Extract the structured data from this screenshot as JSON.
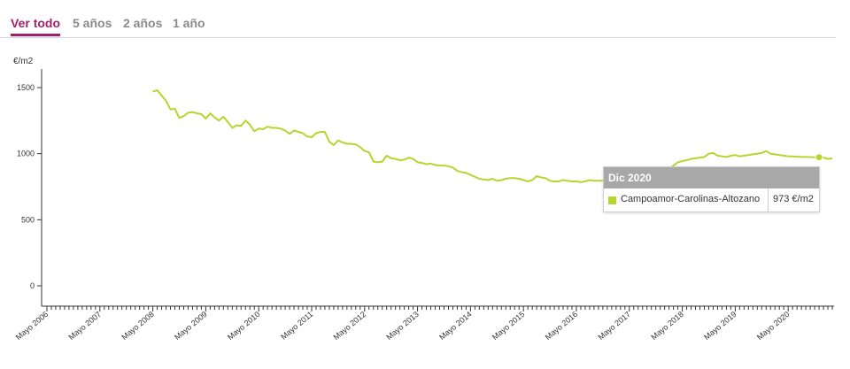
{
  "tabs": [
    {
      "label": "Ver todo",
      "active": true
    },
    {
      "label": "5 años",
      "active": false
    },
    {
      "label": "2 años",
      "active": false
    },
    {
      "label": "1 año",
      "active": false
    }
  ],
  "colors": {
    "accent": "#a3206b",
    "series": "#b5d62e",
    "tab_inactive": "#8a8a8a",
    "tooltip_header": "#a8a8a8"
  },
  "tooltip": {
    "date": "Dic 2020",
    "series_name": "Campoamor-Carolinas-Altozano",
    "value": "973 €/m2"
  },
  "chart_data": {
    "type": "line",
    "title": "",
    "xlabel": "",
    "ylabel": "€/m2",
    "ylim": [
      0,
      1600
    ],
    "yticks": [
      0,
      500,
      1000,
      1500
    ],
    "xlim": [
      "2006-05",
      "2021-03"
    ],
    "xtick_labels": [
      "Mayo 2006",
      "Mayo 2007",
      "Mayo 2008",
      "Mayo 2009",
      "Mayo 2010",
      "Mayo 2011",
      "Mayo 2012",
      "Mayo 2013",
      "Mayo 2014",
      "Mayo 2015",
      "Mayo 2016",
      "Mayo 2017",
      "Mayo 2018",
      "Mayo 2019",
      "Mayo 2020"
    ],
    "grid": false,
    "highlight": {
      "x": "2020-12",
      "y": 973
    },
    "series": [
      {
        "name": "Campoamor-Carolinas-Altozano",
        "points": [
          [
            "2008-05",
            1470
          ],
          [
            "2008-06",
            1480
          ],
          [
            "2008-07",
            1440
          ],
          [
            "2008-08",
            1400
          ],
          [
            "2008-09",
            1335
          ],
          [
            "2008-10",
            1340
          ],
          [
            "2008-11",
            1270
          ],
          [
            "2008-12",
            1285
          ],
          [
            "2009-01",
            1310
          ],
          [
            "2009-02",
            1315
          ],
          [
            "2009-03",
            1305
          ],
          [
            "2009-04",
            1300
          ],
          [
            "2009-05",
            1265
          ],
          [
            "2009-06",
            1305
          ],
          [
            "2009-07",
            1275
          ],
          [
            "2009-08",
            1250
          ],
          [
            "2009-09",
            1280
          ],
          [
            "2009-10",
            1240
          ],
          [
            "2009-11",
            1195
          ],
          [
            "2009-12",
            1215
          ],
          [
            "2010-01",
            1210
          ],
          [
            "2010-02",
            1250
          ],
          [
            "2010-03",
            1220
          ],
          [
            "2010-04",
            1170
          ],
          [
            "2010-05",
            1190
          ],
          [
            "2010-06",
            1185
          ],
          [
            "2010-07",
            1205
          ],
          [
            "2010-08",
            1195
          ],
          [
            "2010-09",
            1195
          ],
          [
            "2010-10",
            1190
          ],
          [
            "2010-11",
            1175
          ],
          [
            "2010-12",
            1150
          ],
          [
            "2011-01",
            1175
          ],
          [
            "2011-02",
            1165
          ],
          [
            "2011-03",
            1155
          ],
          [
            "2011-04",
            1130
          ],
          [
            "2011-05",
            1125
          ],
          [
            "2011-06",
            1155
          ],
          [
            "2011-07",
            1165
          ],
          [
            "2011-08",
            1165
          ],
          [
            "2011-09",
            1090
          ],
          [
            "2011-10",
            1065
          ],
          [
            "2011-11",
            1100
          ],
          [
            "2011-12",
            1085
          ],
          [
            "2012-01",
            1075
          ],
          [
            "2012-02",
            1075
          ],
          [
            "2012-03",
            1070
          ],
          [
            "2012-04",
            1050
          ],
          [
            "2012-05",
            1020
          ],
          [
            "2012-06",
            1010
          ],
          [
            "2012-07",
            940
          ],
          [
            "2012-08",
            935
          ],
          [
            "2012-09",
            940
          ],
          [
            "2012-10",
            985
          ],
          [
            "2012-11",
            965
          ],
          [
            "2012-12",
            960
          ],
          [
            "2013-01",
            950
          ],
          [
            "2013-02",
            955
          ],
          [
            "2013-03",
            970
          ],
          [
            "2013-04",
            960
          ],
          [
            "2013-05",
            935
          ],
          [
            "2013-06",
            930
          ],
          [
            "2013-07",
            920
          ],
          [
            "2013-08",
            925
          ],
          [
            "2013-09",
            915
          ],
          [
            "2013-10",
            910
          ],
          [
            "2013-11",
            910
          ],
          [
            "2013-12",
            905
          ],
          [
            "2014-01",
            895
          ],
          [
            "2014-02",
            870
          ],
          [
            "2014-03",
            860
          ],
          [
            "2014-04",
            855
          ],
          [
            "2014-05",
            840
          ],
          [
            "2014-06",
            825
          ],
          [
            "2014-07",
            810
          ],
          [
            "2014-08",
            805
          ],
          [
            "2014-09",
            800
          ],
          [
            "2014-10",
            810
          ],
          [
            "2014-11",
            795
          ],
          [
            "2014-12",
            800
          ],
          [
            "2015-01",
            810
          ],
          [
            "2015-02",
            815
          ],
          [
            "2015-03",
            815
          ],
          [
            "2015-04",
            810
          ],
          [
            "2015-05",
            800
          ],
          [
            "2015-06",
            790
          ],
          [
            "2015-07",
            800
          ],
          [
            "2015-08",
            830
          ],
          [
            "2015-09",
            820
          ],
          [
            "2015-10",
            815
          ],
          [
            "2015-11",
            795
          ],
          [
            "2015-12",
            790
          ],
          [
            "2016-01",
            790
          ],
          [
            "2016-02",
            800
          ],
          [
            "2016-03",
            795
          ],
          [
            "2016-04",
            790
          ],
          [
            "2016-05",
            790
          ],
          [
            "2016-06",
            785
          ],
          [
            "2016-07",
            790
          ],
          [
            "2016-08",
            800
          ],
          [
            "2016-09",
            795
          ],
          [
            "2016-10",
            795
          ],
          [
            "2016-11",
            795
          ],
          [
            "2016-12",
            790
          ],
          [
            "2017-01",
            795
          ],
          [
            "2017-02",
            800
          ],
          [
            "2017-03",
            805
          ],
          [
            "2017-04",
            810
          ],
          [
            "2017-05",
            815
          ],
          [
            "2017-06",
            820
          ],
          [
            "2017-07",
            825
          ],
          [
            "2017-08",
            825
          ],
          [
            "2017-09",
            830
          ],
          [
            "2017-10",
            835
          ],
          [
            "2017-11",
            840
          ],
          [
            "2017-12",
            850
          ],
          [
            "2018-01",
            860
          ],
          [
            "2018-02",
            880
          ],
          [
            "2018-03",
            910
          ],
          [
            "2018-04",
            935
          ],
          [
            "2018-05",
            945
          ],
          [
            "2018-06",
            950
          ],
          [
            "2018-07",
            960
          ],
          [
            "2018-08",
            965
          ],
          [
            "2018-09",
            970
          ],
          [
            "2018-10",
            975
          ],
          [
            "2018-11",
            1000
          ],
          [
            "2018-12",
            1005
          ],
          [
            "2019-01",
            985
          ],
          [
            "2019-02",
            980
          ],
          [
            "2019-03",
            975
          ],
          [
            "2019-04",
            985
          ],
          [
            "2019-05",
            990
          ],
          [
            "2019-06",
            980
          ],
          [
            "2019-07",
            985
          ],
          [
            "2019-08",
            990
          ],
          [
            "2019-09",
            995
          ],
          [
            "2019-10",
            1000
          ],
          [
            "2019-11",
            1005
          ],
          [
            "2019-12",
            1020
          ],
          [
            "2020-01",
            1000
          ],
          [
            "2020-02",
            995
          ],
          [
            "2020-03",
            990
          ],
          [
            "2020-04",
            985
          ],
          [
            "2020-05",
            980
          ],
          [
            "2020-06",
            980
          ],
          [
            "2020-07",
            978
          ],
          [
            "2020-08",
            975
          ],
          [
            "2020-09",
            975
          ],
          [
            "2020-10",
            974
          ],
          [
            "2020-11",
            972
          ],
          [
            "2020-12",
            973
          ],
          [
            "2021-01",
            970
          ],
          [
            "2021-02",
            960
          ],
          [
            "2021-03",
            965
          ]
        ]
      }
    ]
  }
}
